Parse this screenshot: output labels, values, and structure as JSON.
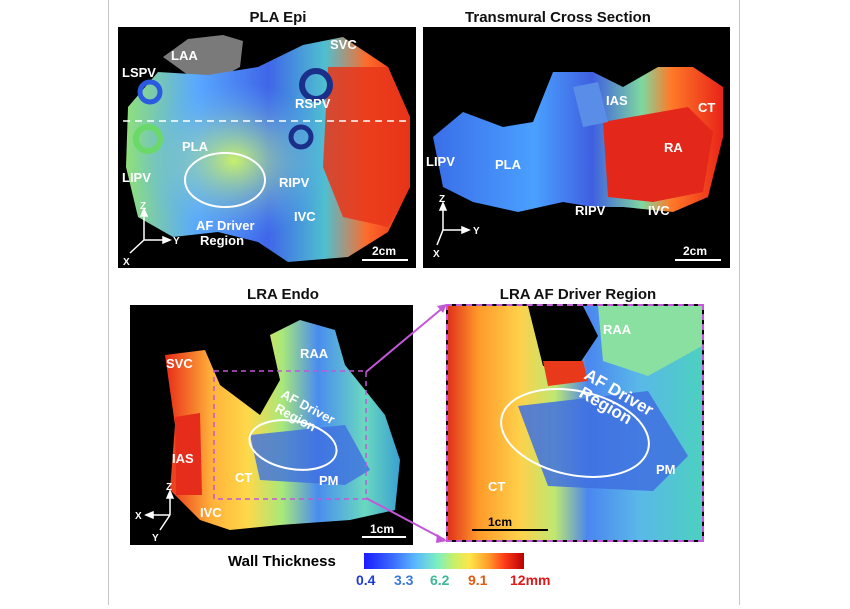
{
  "panels": {
    "pla_epi": {
      "title": "PLA Epi",
      "labels": {
        "laa": "LAA",
        "svc": "SVC",
        "lspv": "LSPV",
        "rspv": "RSPV",
        "pla": "PLA",
        "lipv": "LIPV",
        "ripv": "RIPV",
        "ivc": "IVC",
        "af_driver": "AF Driver",
        "region": "Region"
      },
      "scale": "2cm",
      "axes": {
        "z": "Z",
        "y": "Y",
        "x": "X"
      }
    },
    "transmural": {
      "title": "Transmural Cross Section",
      "labels": {
        "ias": "IAS",
        "ct": "CT",
        "ra": "RA",
        "lipv": "LIPV",
        "pla": "PLA",
        "ripv": "RIPV",
        "ivc": "IVC"
      },
      "scale": "2cm",
      "axes": {
        "z": "Z",
        "y": "Y",
        "x": "X"
      }
    },
    "lra_endo": {
      "title": "LRA Endo",
      "labels": {
        "svc": "SVC",
        "raa": "RAA",
        "af_driver": "AF Driver",
        "region": "Region",
        "ias": "IAS",
        "ct": "CT",
        "pm": "PM",
        "ivc": "IVC"
      },
      "scale": "1cm",
      "axes": {
        "z": "Z",
        "x": "X",
        "y": "Y"
      }
    },
    "lra_af_driver": {
      "title": "LRA AF Driver Region",
      "labels": {
        "raa": "RAA",
        "af_driver": "AF Driver",
        "region": "Region",
        "ct": "CT",
        "pm": "PM"
      },
      "scale": "1cm"
    }
  },
  "legend": {
    "title": "Wall Thickness",
    "ticks": [
      {
        "label": "0.4",
        "color": "#1f3bd6"
      },
      {
        "label": "3.3",
        "color": "#3a7ad8"
      },
      {
        "label": "6.2",
        "color": "#3fb79a"
      },
      {
        "label": "9.1",
        "color": "#e05a10"
      },
      {
        "label": "12mm",
        "color": "#e01818"
      }
    ]
  }
}
